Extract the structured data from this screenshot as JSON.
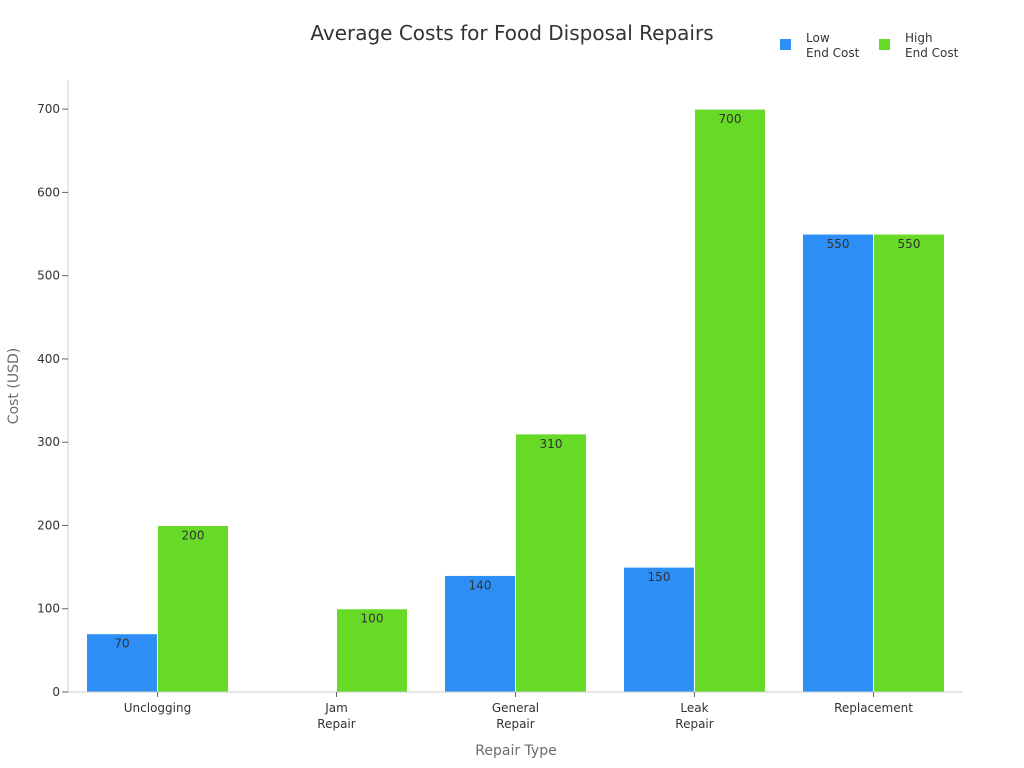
{
  "chart_data": {
    "type": "bar",
    "title": "Average Costs for Food Disposal Repairs",
    "xlabel": "Repair Type",
    "ylabel": "Cost (USD)",
    "ylim": [
      0,
      735
    ],
    "yticks": [
      0,
      100,
      200,
      300,
      400,
      500,
      600,
      700
    ],
    "grid": false,
    "legend_position": "top-right",
    "categories": [
      [
        "Unclogging"
      ],
      [
        "Jam",
        "Repair"
      ],
      [
        "General",
        "Repair"
      ],
      [
        "Leak",
        "Repair"
      ],
      [
        "Replacement"
      ]
    ],
    "series": [
      {
        "name": "Low End Cost",
        "legend_lines": [
          "Low",
          "End Cost"
        ],
        "color": "#2d8ff5",
        "values": [
          70,
          0,
          140,
          150,
          550
        ]
      },
      {
        "name": "High End Cost",
        "legend_lines": [
          "High",
          "End Cost"
        ],
        "color": "#66da26",
        "values": [
          200,
          100,
          310,
          700,
          550
        ]
      }
    ]
  }
}
